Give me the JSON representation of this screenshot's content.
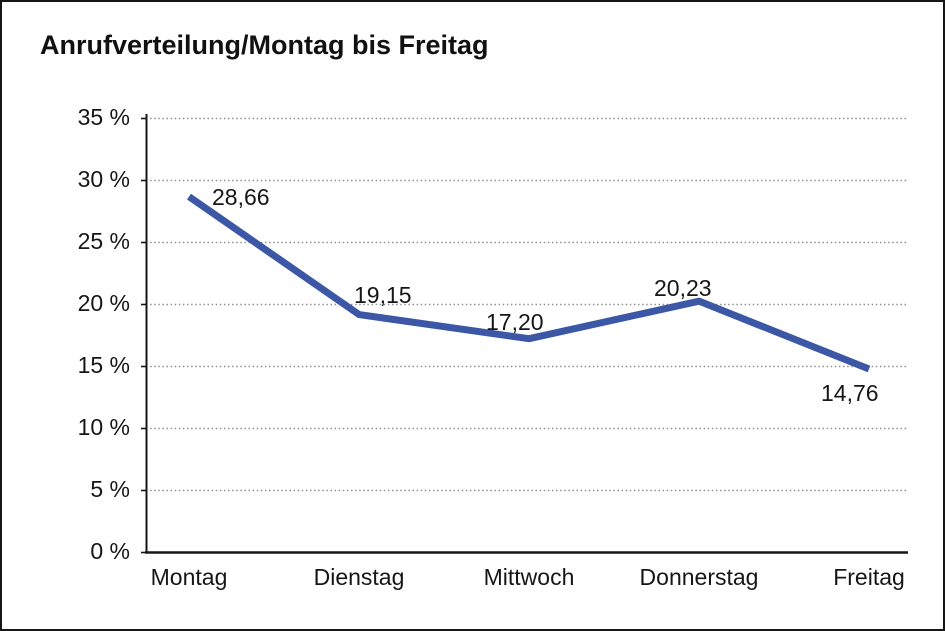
{
  "window": {
    "background_color": "#ffffff",
    "border_color": "#161616"
  },
  "chart_data": {
    "type": "line",
    "title": "Anrufverteilung/Montag bis Freitag",
    "categories": [
      "Montag",
      "Dienstag",
      "Mittwoch",
      "Donnerstag",
      "Freitag"
    ],
    "series": [
      {
        "name": "Anrufverteilung",
        "values": [
          28.66,
          19.15,
          17.2,
          20.23,
          14.76
        ]
      }
    ],
    "value_labels": [
      "28,66",
      "19,15",
      "17,20",
      "20,23",
      "14,76"
    ],
    "ytick_values": [
      35,
      30,
      25,
      20,
      15,
      10,
      5,
      0
    ],
    "ytick_labels": [
      "35 %",
      "30 %",
      "25 %",
      "20 %",
      "15 %",
      "10 %",
      "5 %",
      "0 %"
    ],
    "ylim": [
      0,
      35
    ],
    "xlabel": "",
    "ylabel": "",
    "legend": "none",
    "grid": "horizontal-dotted",
    "colors": {
      "line": "#3B57A5",
      "gridline": "#8f8f8f",
      "axis": "#161616",
      "text": "#161616"
    }
  }
}
